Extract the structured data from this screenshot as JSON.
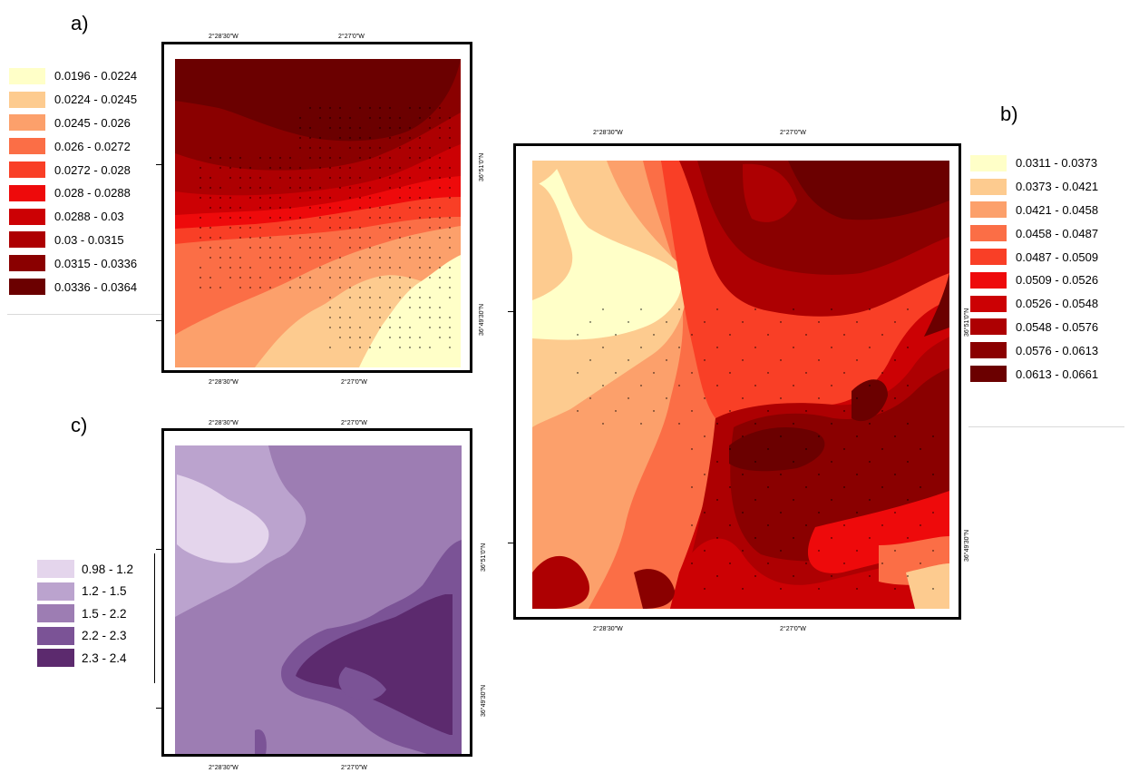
{
  "panels": {
    "a": {
      "label": "a)",
      "coords": {
        "top_left": "2°28'30\"W",
        "top_right": "2°27'0\"W",
        "bottom_left": "2°28'30\"W",
        "bottom_right": "2°27'0\"W",
        "right_top": "36°51'0\"N",
        "right_bottom": "36°49'30\"N"
      },
      "legend": [
        {
          "label": "0.0196 - 0.0224",
          "color": "#FFFFC8"
        },
        {
          "label": "0.0224 - 0.0245",
          "color": "#FDCB8F"
        },
        {
          "label": "0.0245 - 0.026",
          "color": "#FCA06B"
        },
        {
          "label": "0.026 - 0.0272",
          "color": "#FB6E46"
        },
        {
          "label": "0.0272 - 0.028",
          "color": "#F93F26"
        },
        {
          "label": "0.028 - 0.0288",
          "color": "#EE0A0B"
        },
        {
          "label": "0.0288 - 0.03",
          "color": "#CC0104"
        },
        {
          "label": "0.03 - 0.0315",
          "color": "#AD0002"
        },
        {
          "label": "0.0315 - 0.0336",
          "color": "#8A0000"
        },
        {
          "label": "0.0336 - 0.0364",
          "color": "#6B0000"
        }
      ]
    },
    "b": {
      "label": "b)",
      "coords": {
        "top_left": "2°28'30\"W",
        "top_right": "2°27'0\"W",
        "bottom_left": "2°28'30\"W",
        "bottom_right": "2°27'0\"W",
        "right_top": "36°51'0\"N",
        "right_bottom": "36°49'30\"N"
      },
      "legend": [
        {
          "label": "0.0311 - 0.0373",
          "color": "#FFFFC8"
        },
        {
          "label": "0.0373 - 0.0421",
          "color": "#FDCB8F"
        },
        {
          "label": "0.0421 - 0.0458",
          "color": "#FCA06B"
        },
        {
          "label": "0.0458 - 0.0487",
          "color": "#FB6E46"
        },
        {
          "label": "0.0487 - 0.0509",
          "color": "#F93F26"
        },
        {
          "label": "0.0509 - 0.0526",
          "color": "#EE0A0B"
        },
        {
          "label": "0.0526 - 0.0548",
          "color": "#CC0104"
        },
        {
          "label": "0.0548 - 0.0576",
          "color": "#AD0002"
        },
        {
          "label": "0.0576 - 0.0613",
          "color": "#8A0000"
        },
        {
          "label": "0.0613 - 0.0661",
          "color": "#6B0000"
        }
      ]
    },
    "c": {
      "label": "c)",
      "coords": {
        "top_left": "2°28'30\"W",
        "top_right": "2°27'0\"W",
        "bottom_left": "2°28'30\"W",
        "bottom_right": "2°27'0\"W",
        "right_top": "36°51'0\"N",
        "right_bottom": "36°49'30\"N"
      },
      "legend": [
        {
          "label": "0.98 - 1.2",
          "color": "#E4D5EC"
        },
        {
          "label": "1.2 - 1.5",
          "color": "#BBA3CE"
        },
        {
          "label": "1.5 - 2.2",
          "color": "#9D7DB3"
        },
        {
          "label": "2.2 - 2.3",
          "color": "#7B5396"
        },
        {
          "label": "2.3 - 2.4",
          "color": "#5C2A6E"
        }
      ]
    }
  }
}
